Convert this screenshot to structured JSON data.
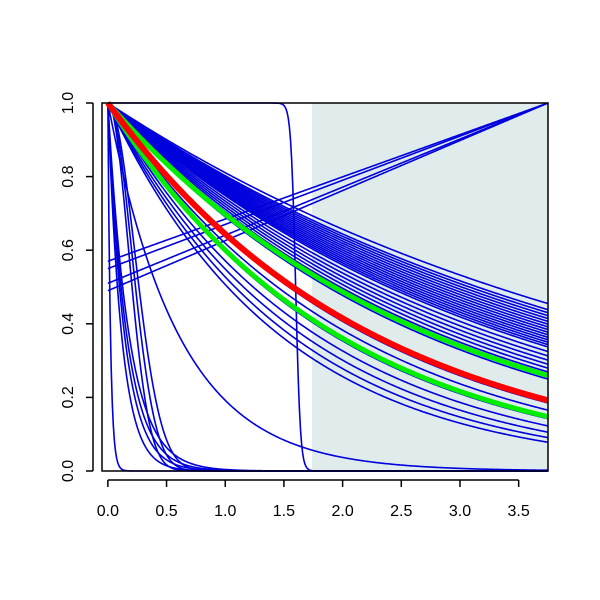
{
  "chart_data": {
    "type": "line",
    "title": "",
    "xlabel": "",
    "ylabel": "",
    "xlim": [
      -0.05,
      3.75
    ],
    "ylim": [
      0.0,
      1.0
    ],
    "x_ticks": [
      {
        "value": 0.0,
        "label": "0.0"
      },
      {
        "value": 0.5,
        "label": "0.5"
      },
      {
        "value": 1.0,
        "label": "1.0"
      },
      {
        "value": 1.5,
        "label": "1.5"
      },
      {
        "value": 2.0,
        "label": "2.0"
      },
      {
        "value": 2.5,
        "label": "2.5"
      },
      {
        "value": 3.0,
        "label": "3.0"
      },
      {
        "value": 3.5,
        "label": "3.5"
      }
    ],
    "y_ticks": [
      {
        "value": 0.0,
        "label": "0.0"
      },
      {
        "value": 0.2,
        "label": "0.2"
      },
      {
        "value": 0.4,
        "label": "0.4"
      },
      {
        "value": 0.6,
        "label": "0.6"
      },
      {
        "value": 0.8,
        "label": "0.8"
      },
      {
        "value": 1.0,
        "label": "1.0"
      }
    ],
    "grid": false,
    "legend": "none",
    "shaded_region": {
      "x_start": 1.74,
      "x_end": 3.75,
      "color": "#e0ecec"
    },
    "colors": {
      "blue": "#0000dd",
      "red": "#ff0000",
      "green": "#00ee00"
    },
    "series": [
      {
        "kind": "exp",
        "k": 0.21,
        "color": "blue",
        "width": 1.6
      },
      {
        "kind": "exp",
        "k": 0.22,
        "color": "blue",
        "width": 1.6
      },
      {
        "kind": "exp",
        "k": 0.225,
        "color": "blue",
        "width": 1.6
      },
      {
        "kind": "exp",
        "k": 0.23,
        "color": "blue",
        "width": 1.6
      },
      {
        "kind": "exp",
        "k": 0.235,
        "color": "blue",
        "width": 1.6
      },
      {
        "kind": "exp",
        "k": 0.24,
        "color": "blue",
        "width": 1.6
      },
      {
        "kind": "exp",
        "k": 0.245,
        "color": "blue",
        "width": 1.6
      },
      {
        "kind": "exp",
        "k": 0.25,
        "color": "blue",
        "width": 1.6
      },
      {
        "kind": "exp",
        "k": 0.255,
        "color": "blue",
        "width": 1.6
      },
      {
        "kind": "exp",
        "k": 0.26,
        "color": "blue",
        "width": 1.6
      },
      {
        "kind": "exp",
        "k": 0.265,
        "color": "blue",
        "width": 1.6
      },
      {
        "kind": "exp",
        "k": 0.27,
        "color": "blue",
        "width": 1.6
      },
      {
        "kind": "exp",
        "k": 0.275,
        "color": "blue",
        "width": 1.6
      },
      {
        "kind": "exp",
        "k": 0.28,
        "color": "blue",
        "width": 1.6
      },
      {
        "kind": "exp",
        "k": 0.285,
        "color": "blue",
        "width": 1.6
      },
      {
        "kind": "exp",
        "k": 0.29,
        "color": "blue",
        "width": 1.6
      },
      {
        "kind": "exp",
        "k": 0.3,
        "color": "blue",
        "width": 1.6
      },
      {
        "kind": "exp",
        "k": 0.31,
        "color": "blue",
        "width": 1.6
      },
      {
        "kind": "exp",
        "k": 0.32,
        "color": "blue",
        "width": 1.6
      },
      {
        "kind": "exp",
        "k": 0.33,
        "color": "blue",
        "width": 1.6
      },
      {
        "kind": "exp",
        "k": 0.34,
        "color": "blue",
        "width": 1.6
      },
      {
        "kind": "exp",
        "k": 0.35,
        "color": "blue",
        "width": 1.6
      },
      {
        "kind": "exp",
        "k": 0.37,
        "color": "blue",
        "width": 1.6
      },
      {
        "kind": "exp",
        "k": 0.45,
        "color": "blue",
        "width": 1.6
      },
      {
        "kind": "exp",
        "k": 0.48,
        "color": "blue",
        "width": 1.6
      },
      {
        "kind": "exp",
        "k": 0.52,
        "color": "blue",
        "width": 1.6
      },
      {
        "kind": "exp",
        "k": 0.56,
        "color": "blue",
        "width": 1.6
      },
      {
        "kind": "exp",
        "k": 0.6,
        "color": "blue",
        "width": 1.6
      },
      {
        "kind": "exp",
        "k": 0.64,
        "color": "blue",
        "width": 1.6
      },
      {
        "kind": "exp",
        "k": 0.68,
        "color": "blue",
        "width": 1.6
      },
      {
        "kind": "exp",
        "k": 1.65,
        "color": "blue",
        "width": 1.6
      },
      {
        "kind": "exp",
        "k": 5.5,
        "color": "blue",
        "width": 1.6
      },
      {
        "kind": "exp",
        "k": 6.2,
        "color": "blue",
        "width": 1.6
      },
      {
        "kind": "exp",
        "k": 7.0,
        "color": "blue",
        "width": 1.6
      },
      {
        "kind": "exp",
        "k": 8.5,
        "color": "blue",
        "width": 1.6
      },
      {
        "kind": "exp",
        "k": 45.0,
        "color": "blue",
        "width": 1.6
      },
      {
        "kind": "gauss",
        "s": 0.35,
        "color": "blue",
        "width": 1.6
      },
      {
        "kind": "gauss",
        "s": 0.4,
        "color": "blue",
        "width": 1.6
      },
      {
        "kind": "gauss",
        "s": 0.45,
        "color": "blue",
        "width": 1.6
      },
      {
        "kind": "sigmoid",
        "x0": 1.6,
        "s": 0.02,
        "color": "blue",
        "width": 1.6
      },
      {
        "kind": "linear",
        "y0": 0.49,
        "y1": 1.0,
        "color": "blue",
        "width": 1.6
      },
      {
        "kind": "linear",
        "y0": 0.51,
        "y1": 1.0,
        "color": "blue",
        "width": 1.6
      },
      {
        "kind": "linear",
        "y0": 0.55,
        "y1": 1.0,
        "color": "blue",
        "width": 1.6
      },
      {
        "kind": "linear",
        "y0": 0.57,
        "y1": 1.0,
        "color": "blue",
        "width": 1.6
      },
      {
        "kind": "exp",
        "k": 0.36,
        "color": "green",
        "width": 5
      },
      {
        "kind": "exp",
        "k": 0.51,
        "color": "green",
        "width": 5
      },
      {
        "kind": "exp",
        "k": 0.44,
        "color": "red",
        "width": 6
      }
    ]
  }
}
